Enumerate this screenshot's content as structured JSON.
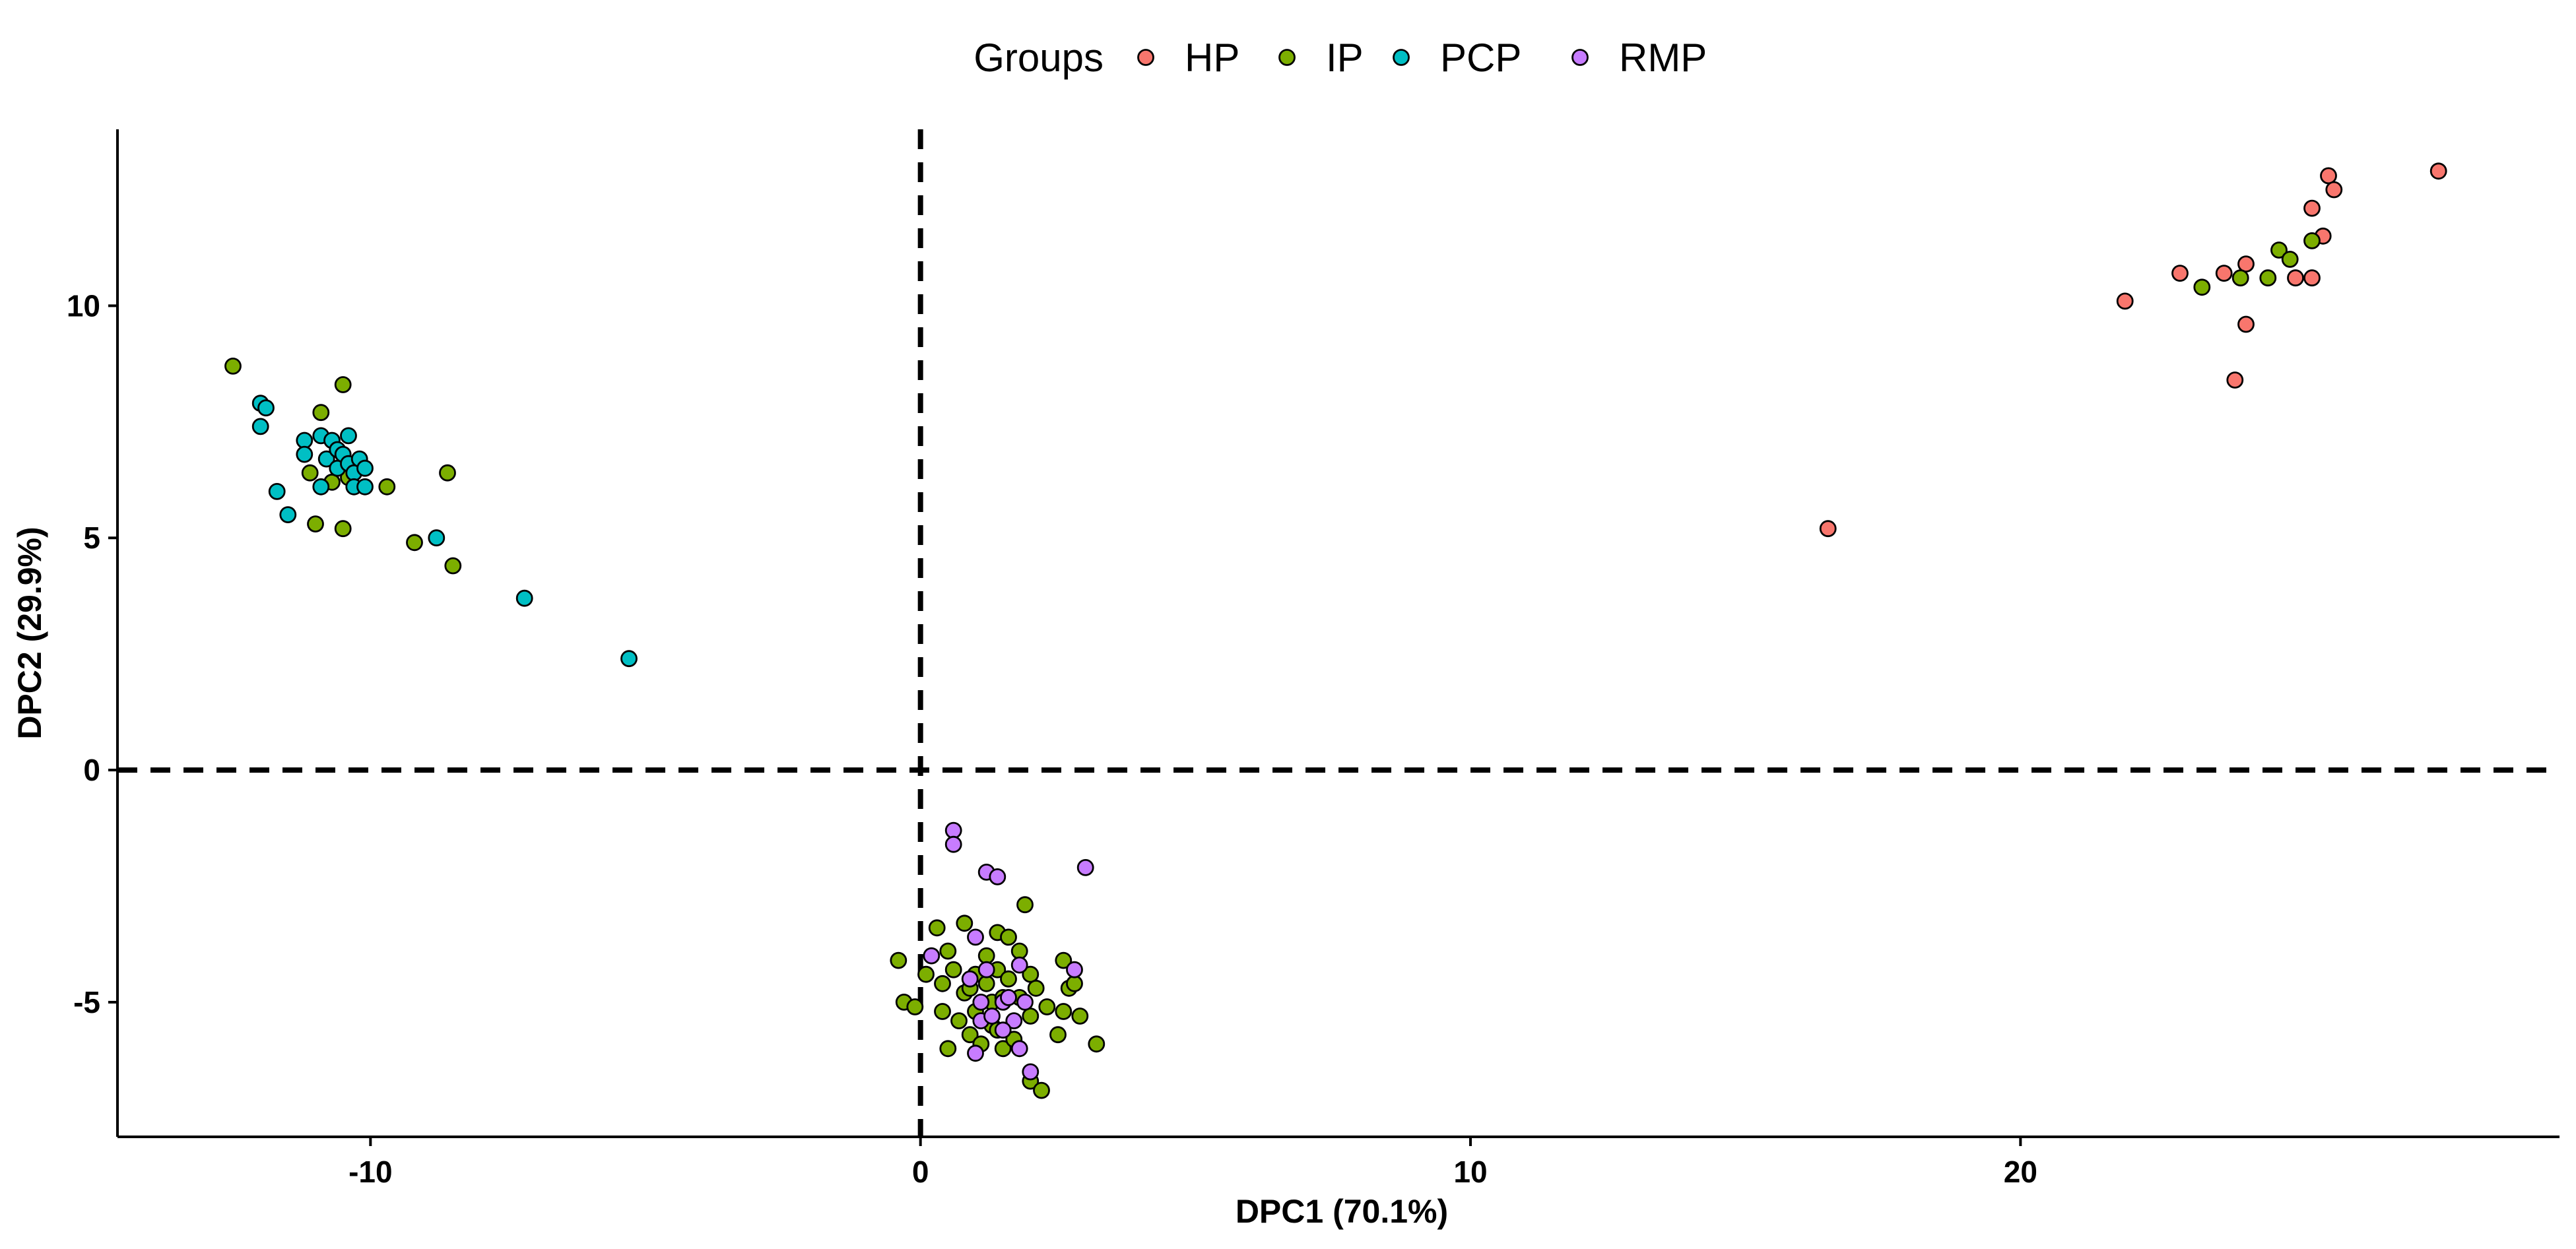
{
  "chart_data": {
    "type": "scatter",
    "title": "",
    "xlabel": "DPC1 (70.1%)",
    "ylabel": "DPC2 (29.9%)",
    "xlim": [
      -14.6,
      29.8
    ],
    "ylim": [
      -7.9,
      13.8
    ],
    "xticks": [
      -10,
      0,
      10,
      20
    ],
    "xtick_labels": [
      "-10",
      "0",
      "10",
      "20"
    ],
    "yticks": [
      -5,
      0,
      5,
      10
    ],
    "ytick_labels": [
      "-5",
      "0",
      "5",
      "10"
    ],
    "reference_lines": {
      "x": 0,
      "y": 0,
      "style": "dashed"
    },
    "grid": false,
    "legend": {
      "title": "Groups",
      "position": "top"
    },
    "series": [
      {
        "name": "HP",
        "color": "#F8766D",
        "points": [
          [
            16.5,
            5.2
          ],
          [
            21.9,
            10.1
          ],
          [
            22.9,
            10.7
          ],
          [
            23.7,
            10.7
          ],
          [
            23.9,
            8.4
          ],
          [
            24.1,
            9.6
          ],
          [
            24.1,
            10.9
          ],
          [
            25.0,
            10.6
          ],
          [
            25.3,
            10.6
          ],
          [
            25.3,
            12.1
          ],
          [
            25.5,
            11.5
          ],
          [
            25.6,
            12.8
          ],
          [
            25.7,
            12.5
          ],
          [
            27.6,
            12.9
          ]
        ]
      },
      {
        "name": "IP",
        "color": "#7CAE00",
        "points": [
          [
            -12.5,
            8.7
          ],
          [
            -10.5,
            8.3
          ],
          [
            -10.9,
            7.7
          ],
          [
            -11.1,
            6.4
          ],
          [
            -10.7,
            6.2
          ],
          [
            -10.4,
            6.3
          ],
          [
            -9.7,
            6.1
          ],
          [
            -11.0,
            5.3
          ],
          [
            -10.5,
            5.2
          ],
          [
            -8.6,
            6.4
          ],
          [
            -9.2,
            4.9
          ],
          [
            -8.5,
            4.4
          ],
          [
            23.3,
            10.4
          ],
          [
            24.0,
            10.6
          ],
          [
            24.5,
            10.6
          ],
          [
            24.7,
            11.2
          ],
          [
            24.9,
            11.0
          ],
          [
            25.3,
            11.4
          ],
          [
            -0.4,
            -4.1
          ],
          [
            -0.3,
            -5.0
          ],
          [
            -0.1,
            -5.1
          ],
          [
            0.1,
            -4.4
          ],
          [
            0.3,
            -3.4
          ],
          [
            0.4,
            -4.6
          ],
          [
            0.4,
            -5.2
          ],
          [
            0.5,
            -6.0
          ],
          [
            0.5,
            -3.9
          ],
          [
            0.6,
            -4.3
          ],
          [
            0.7,
            -5.4
          ],
          [
            0.8,
            -3.3
          ],
          [
            0.8,
            -4.8
          ],
          [
            0.9,
            -5.7
          ],
          [
            1.0,
            -4.4
          ],
          [
            1.0,
            -5.2
          ],
          [
            1.1,
            -5.9
          ],
          [
            1.2,
            -4.0
          ],
          [
            1.2,
            -4.6
          ],
          [
            1.3,
            -5.0
          ],
          [
            1.3,
            -5.5
          ],
          [
            1.4,
            -4.3
          ],
          [
            1.4,
            -3.5
          ],
          [
            1.5,
            -6.0
          ],
          [
            1.5,
            -4.9
          ],
          [
            1.6,
            -4.5
          ],
          [
            1.6,
            -3.6
          ],
          [
            1.7,
            -5.8
          ],
          [
            1.8,
            -4.9
          ],
          [
            1.8,
            -3.9
          ],
          [
            1.9,
            -2.9
          ],
          [
            2.0,
            -4.4
          ],
          [
            2.0,
            -5.3
          ],
          [
            2.0,
            -6.7
          ],
          [
            2.1,
            -4.7
          ],
          [
            2.2,
            -6.9
          ],
          [
            2.3,
            -5.1
          ],
          [
            2.5,
            -5.7
          ],
          [
            2.6,
            -4.1
          ],
          [
            2.6,
            -5.2
          ],
          [
            2.7,
            -4.7
          ],
          [
            2.8,
            -4.6
          ],
          [
            2.9,
            -5.3
          ],
          [
            3.2,
            -5.9
          ],
          [
            0.9,
            -4.7
          ],
          [
            1.4,
            -5.6
          ]
        ]
      },
      {
        "name": "PCP",
        "color": "#00BFC4",
        "points": [
          [
            -12.0,
            7.9
          ],
          [
            -11.9,
            7.8
          ],
          [
            -12.0,
            7.4
          ],
          [
            -11.2,
            7.1
          ],
          [
            -11.2,
            6.8
          ],
          [
            -11.7,
            6.0
          ],
          [
            -11.5,
            5.5
          ],
          [
            -10.9,
            6.1
          ],
          [
            -10.9,
            7.2
          ],
          [
            -10.8,
            6.7
          ],
          [
            -10.7,
            7.1
          ],
          [
            -10.6,
            6.9
          ],
          [
            -10.6,
            6.5
          ],
          [
            -10.5,
            6.8
          ],
          [
            -10.4,
            7.2
          ],
          [
            -10.4,
            6.6
          ],
          [
            -10.3,
            6.4
          ],
          [
            -10.3,
            6.1
          ],
          [
            -10.2,
            6.7
          ],
          [
            -10.1,
            6.1
          ],
          [
            -10.1,
            6.5
          ],
          [
            -8.8,
            5.0
          ],
          [
            -7.2,
            3.7
          ],
          [
            -5.3,
            2.4
          ]
        ]
      },
      {
        "name": "RMP",
        "color": "#C77CFF",
        "points": [
          [
            0.6,
            -1.3
          ],
          [
            0.6,
            -1.6
          ],
          [
            1.2,
            -2.2
          ],
          [
            1.4,
            -2.3
          ],
          [
            3.0,
            -2.1
          ],
          [
            0.2,
            -4.0
          ],
          [
            0.9,
            -4.5
          ],
          [
            1.0,
            -3.6
          ],
          [
            1.1,
            -5.0
          ],
          [
            1.1,
            -5.4
          ],
          [
            1.0,
            -6.1
          ],
          [
            1.2,
            -4.3
          ],
          [
            1.3,
            -5.3
          ],
          [
            1.5,
            -5.0
          ],
          [
            1.6,
            -4.9
          ],
          [
            1.7,
            -5.4
          ],
          [
            1.8,
            -4.2
          ],
          [
            1.8,
            -6.0
          ],
          [
            1.9,
            -5.0
          ],
          [
            2.0,
            -6.5
          ],
          [
            2.8,
            -4.3
          ],
          [
            1.5,
            -5.6
          ]
        ]
      }
    ]
  }
}
